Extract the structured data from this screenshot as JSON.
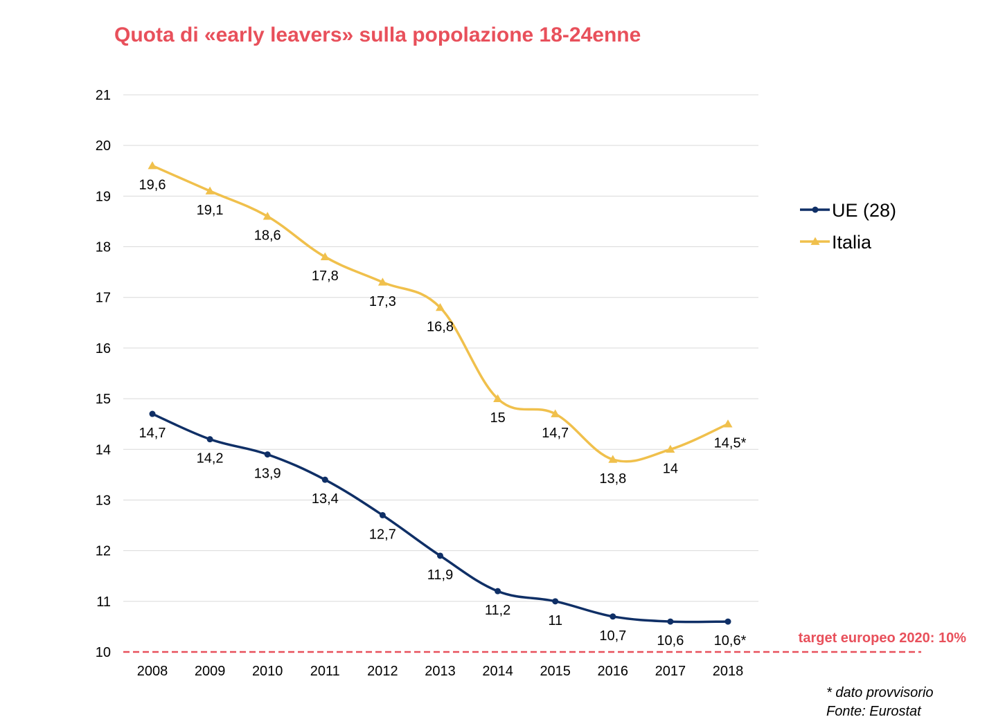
{
  "chart_data": {
    "type": "line",
    "title": "Quota di «early leavers» sulla popolazione 18-24enne",
    "categories": [
      "2008",
      "2009",
      "2010",
      "2011",
      "2012",
      "2013",
      "2014",
      "2015",
      "2016",
      "2017",
      "2018"
    ],
    "series": [
      {
        "name": "UE (28)",
        "color": "#0f2f66",
        "marker": "circle",
        "values": [
          14.7,
          14.2,
          13.9,
          13.4,
          12.7,
          11.9,
          11.2,
          11.0,
          10.7,
          10.6,
          10.6
        ],
        "labels": [
          "14,7",
          "14,2",
          "13,9",
          "13,4",
          "12,7",
          "11,9",
          "11,2",
          "11",
          "10,7",
          "10,6",
          "10,6*"
        ]
      },
      {
        "name": "Italia",
        "color": "#f0c04c",
        "marker": "triangle",
        "values": [
          19.6,
          19.1,
          18.6,
          17.8,
          17.3,
          16.8,
          15.0,
          14.7,
          13.8,
          14.0,
          14.5
        ],
        "labels": [
          "19,6",
          "19,1",
          "18,6",
          "17,8",
          "17,3",
          "16,8",
          "15",
          "14,7",
          "13,8",
          "14",
          "14,5*"
        ]
      }
    ],
    "ylim": [
      10,
      21
    ],
    "yticks": [
      "10",
      "11",
      "12",
      "13",
      "14",
      "15",
      "16",
      "17",
      "18",
      "19",
      "20",
      "21"
    ],
    "grid": true,
    "legend_position": "right",
    "reference_line": {
      "value": 10,
      "label": "target europeo 2020: 10%",
      "color": "#e8505b",
      "style": "dashed"
    },
    "xlabel": "",
    "ylabel": ""
  },
  "footnotes": [
    "* dato provvisorio",
    "Fonte: Eurostat"
  ]
}
